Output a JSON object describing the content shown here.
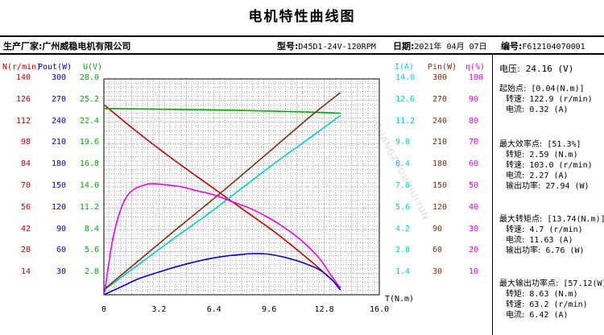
{
  "title": "电机特性曲线图",
  "header": {
    "manufacturer_label": "生产厂家:",
    "manufacturer": "广州威稳电机有限公司",
    "model_label": "型号:",
    "model": "D45D1-24V-120RPM",
    "date_label": "日期:",
    "date": "2021年 04月 07日",
    "serial_label": "编号:",
    "serial": "F612104070001"
  },
  "voltage": {
    "label": "电压:",
    "value": "24.16 (V)"
  },
  "info_blocks": [
    {
      "heading": "起始点:",
      "bracket": "[0.04(N.m)]",
      "lines": [
        {
          "label": "转速:",
          "value": "122.9 (r/min)"
        },
        {
          "label": "电流:",
          "value": "0.32 (A)"
        }
      ]
    },
    {
      "heading": "最大效率点:",
      "bracket": "[51.3%]",
      "lines": [
        {
          "label": "转矩:",
          "value": "2.59 (N.m)"
        },
        {
          "label": "转速:",
          "value": "103.0 (r/min)"
        },
        {
          "label": "电流:",
          "value": "2.27 (A)"
        },
        {
          "label": "输出功率:",
          "value": "27.94 (W)"
        }
      ]
    },
    {
      "heading": "最大转矩点:",
      "bracket": "[13.74(N.m)]",
      "lines": [
        {
          "label": "转速:",
          "value": "4.7 (r/min)"
        },
        {
          "label": "电流:",
          "value": "11.63 (A)"
        },
        {
          "label": "输出功率:",
          "value": "6.76 (W)"
        }
      ]
    },
    {
      "heading": "最大输出功率点:",
      "bracket": "[57.12(W)]",
      "lines": [
        {
          "label": "转矩:",
          "value": "8.63 (N.m)"
        },
        {
          "label": "转速:",
          "value": "63.2 (r/min)"
        },
        {
          "label": "电流:",
          "value": "6.42 (A)"
        }
      ]
    }
  ],
  "watermark": "GUANGZHOU HUIYUN",
  "colors": {
    "speed": "#c00000",
    "power": "#0000cc",
    "voltage": "#00aa00",
    "current": "#00cccc",
    "input_power": "#7a2e10",
    "efficiency": "#ee00ee"
  },
  "chart_data": {
    "type": "line",
    "xlabel": "T(N.m)",
    "xlim": [
      0,
      16.0
    ],
    "x_ticks": [
      "0",
      "3.2",
      "6.4",
      "9.6",
      "12.8",
      "16.0"
    ],
    "axes": [
      {
        "id": "speed",
        "label": "N(r/min)",
        "ticks": [
          "140",
          "126",
          "112",
          "98",
          "84",
          "70",
          "56",
          "42",
          "28",
          "14"
        ],
        "lim": [
          0,
          140
        ]
      },
      {
        "id": "power",
        "label": "Pout(W)",
        "ticks": [
          "300",
          "270",
          "240",
          "210",
          "180",
          "150",
          "120",
          "90",
          "60",
          "30"
        ],
        "lim": [
          0,
          300
        ]
      },
      {
        "id": "voltage",
        "label": "U(V)",
        "ticks": [
          "28.0",
          "25.2",
          "22.4",
          "19.6",
          "16.8",
          "14.0",
          "11.2",
          "8.4",
          "5.6",
          "2.8"
        ],
        "lim": [
          0,
          28
        ]
      },
      {
        "id": "current",
        "label": "I(A)",
        "ticks": [
          "14.0",
          "12.6",
          "11.2",
          "9.8",
          "8.4",
          "7.0",
          "5.6",
          "4.2",
          "2.8",
          "1.4"
        ],
        "lim": [
          0,
          14
        ]
      },
      {
        "id": "input_power",
        "label": "Pin(W)",
        "ticks": [
          "300",
          "270",
          "240",
          "210",
          "180",
          "150",
          "120",
          "90",
          "60",
          "30"
        ],
        "lim": [
          0,
          300
        ]
      },
      {
        "id": "efficiency",
        "label": "η(%)",
        "ticks": [
          "100",
          "90",
          "80",
          "70",
          "60",
          "50",
          "40",
          "30",
          "20",
          "10"
        ],
        "lim": [
          0,
          100
        ]
      }
    ],
    "series": [
      {
        "id": "speed",
        "axis": "speed",
        "x": [
          0.04,
          2,
          4,
          6,
          8,
          10,
          12,
          13,
          13.74
        ],
        "y": [
          122.9,
          105,
          88,
          72,
          56,
          40,
          22,
          12,
          4.7
        ]
      },
      {
        "id": "voltage",
        "axis": "voltage",
        "x": [
          0.04,
          4,
          8,
          12,
          13.74
        ],
        "y": [
          24.16,
          24.05,
          23.9,
          23.7,
          23.55
        ]
      },
      {
        "id": "current",
        "axis": "current",
        "x": [
          0.04,
          2,
          4,
          6,
          8,
          10,
          12,
          13.74
        ],
        "y": [
          0.32,
          1.95,
          3.6,
          5.2,
          6.9,
          8.6,
          10.2,
          11.63
        ]
      },
      {
        "id": "input_power",
        "axis": "input_power",
        "x": [
          0.04,
          2,
          4,
          6,
          8,
          10,
          12,
          13.74
        ],
        "y": [
          8,
          47,
          87,
          126,
          166,
          207,
          248,
          281
        ]
      },
      {
        "id": "power",
        "axis": "power",
        "x": [
          0.04,
          1,
          2,
          3,
          4,
          5,
          6,
          7,
          8,
          8.63,
          9.5,
          10.5,
          11.5,
          12.5,
          13.2,
          13.74
        ],
        "y": [
          0.5,
          11,
          22,
          30,
          37.5,
          44,
          49.5,
          53.5,
          56,
          57.12,
          56.5,
          52,
          45,
          35,
          22,
          6.76
        ]
      },
      {
        "id": "efficiency",
        "axis": "efficiency",
        "x": [
          0.04,
          0.5,
          1,
          1.6,
          2.59,
          3.5,
          4.5,
          5.5,
          6.5,
          7.5,
          8.5,
          9.5,
          10.5,
          11.5,
          12.5,
          13.2,
          13.74
        ],
        "y": [
          1,
          25,
          40,
          48,
          51.3,
          51,
          50,
          48,
          46,
          43,
          40,
          36,
          31,
          25,
          17,
          9,
          3
        ]
      }
    ]
  }
}
